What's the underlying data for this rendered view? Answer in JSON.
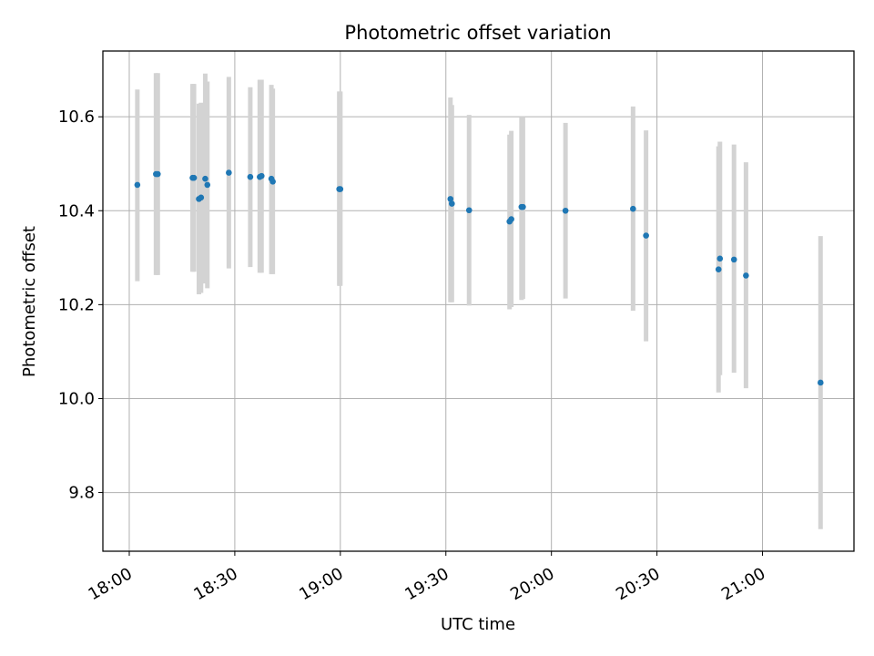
{
  "chart_data": {
    "type": "scatter",
    "title": "Photometric offset variation",
    "xlabel": "UTC time",
    "ylabel": "Photometric offset",
    "x_unit": "minutes after 18:00 UTC",
    "xlim": [
      -7.5,
      206
    ],
    "ylim": [
      9.675,
      10.74
    ],
    "xticks": [
      0,
      30,
      60,
      90,
      120,
      150,
      180
    ],
    "xtick_labels": [
      "18:00",
      "18:30",
      "19:00",
      "19:30",
      "20:00",
      "20:30",
      "21:00"
    ],
    "yticks": [
      9.8,
      10.0,
      10.2,
      10.4,
      10.6
    ],
    "ytick_labels": [
      "9.8",
      "10.0",
      "10.2",
      "10.4",
      "10.6"
    ],
    "grid": true,
    "series": [
      {
        "name": "photometric offset",
        "marker_color": "#1f77b4",
        "errorbar_color": "#d3d3d3",
        "points": [
          {
            "x": 2.3,
            "y": 10.455,
            "ylow": 10.25,
            "yhigh": 10.658
          },
          {
            "x": 7.6,
            "y": 10.478,
            "ylow": 10.263,
            "yhigh": 10.693
          },
          {
            "x": 8.1,
            "y": 10.478,
            "ylow": 10.263,
            "yhigh": 10.693
          },
          {
            "x": 18.0,
            "y": 10.47,
            "ylow": 10.27,
            "yhigh": 10.67
          },
          {
            "x": 18.4,
            "y": 10.47,
            "ylow": 10.27,
            "yhigh": 10.67
          },
          {
            "x": 19.8,
            "y": 10.425,
            "ylow": 10.222,
            "yhigh": 10.628
          },
          {
            "x": 20.4,
            "y": 10.428,
            "ylow": 10.225,
            "yhigh": 10.63
          },
          {
            "x": 21.6,
            "y": 10.468,
            "ylow": 10.245,
            "yhigh": 10.692
          },
          {
            "x": 22.2,
            "y": 10.455,
            "ylow": 10.235,
            "yhigh": 10.675
          },
          {
            "x": 28.3,
            "y": 10.481,
            "ylow": 10.277,
            "yhigh": 10.685
          },
          {
            "x": 34.4,
            "y": 10.472,
            "ylow": 10.28,
            "yhigh": 10.663
          },
          {
            "x": 37.1,
            "y": 10.472,
            "ylow": 10.268,
            "yhigh": 10.679
          },
          {
            "x": 37.6,
            "y": 10.474,
            "ylow": 10.268,
            "yhigh": 10.679
          },
          {
            "x": 40.4,
            "y": 10.468,
            "ylow": 10.265,
            "yhigh": 10.668
          },
          {
            "x": 40.8,
            "y": 10.462,
            "ylow": 10.265,
            "yhigh": 10.66
          },
          {
            "x": 59.7,
            "y": 10.446,
            "ylow": 10.24,
            "yhigh": 10.654
          },
          {
            "x": 60.0,
            "y": 10.446,
            "ylow": 10.24,
            "yhigh": 10.654
          },
          {
            "x": 91.3,
            "y": 10.425,
            "ylow": 10.205,
            "yhigh": 10.641
          },
          {
            "x": 91.7,
            "y": 10.415,
            "ylow": 10.205,
            "yhigh": 10.625
          },
          {
            "x": 96.6,
            "y": 10.401,
            "ylow": 10.198,
            "yhigh": 10.604
          },
          {
            "x": 108.1,
            "y": 10.377,
            "ylow": 10.19,
            "yhigh": 10.562
          },
          {
            "x": 108.6,
            "y": 10.382,
            "ylow": 10.195,
            "yhigh": 10.57
          },
          {
            "x": 111.5,
            "y": 10.408,
            "ylow": 10.21,
            "yhigh": 10.6
          },
          {
            "x": 111.9,
            "y": 10.408,
            "ylow": 10.212,
            "yhigh": 10.6
          },
          {
            "x": 124.0,
            "y": 10.4,
            "ylow": 10.213,
            "yhigh": 10.587
          },
          {
            "x": 143.2,
            "y": 10.404,
            "ylow": 10.187,
            "yhigh": 10.622
          },
          {
            "x": 146.9,
            "y": 10.347,
            "ylow": 10.122,
            "yhigh": 10.571
          },
          {
            "x": 167.5,
            "y": 10.275,
            "ylow": 10.013,
            "yhigh": 10.537
          },
          {
            "x": 167.9,
            "y": 10.298,
            "ylow": 10.05,
            "yhigh": 10.547
          },
          {
            "x": 171.9,
            "y": 10.296,
            "ylow": 10.055,
            "yhigh": 10.541
          },
          {
            "x": 175.3,
            "y": 10.262,
            "ylow": 10.022,
            "yhigh": 10.503
          },
          {
            "x": 196.5,
            "y": 10.034,
            "ylow": 9.722,
            "yhigh": 10.346
          }
        ]
      }
    ]
  }
}
